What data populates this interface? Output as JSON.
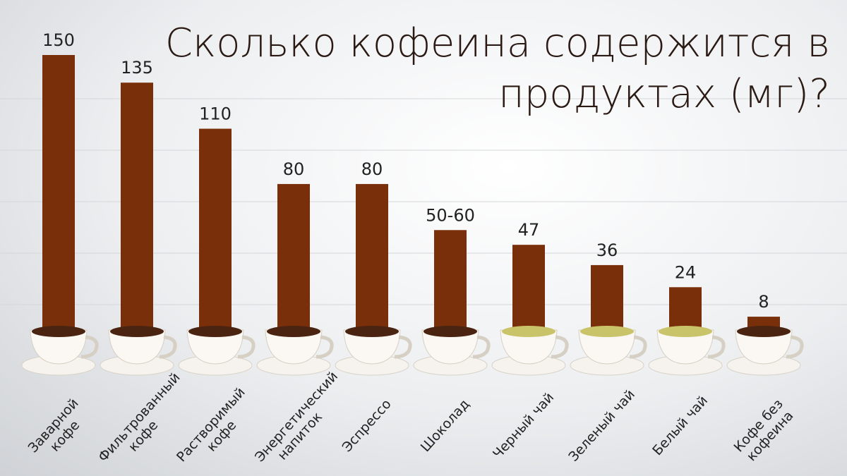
{
  "chart_data": {
    "type": "bar",
    "title": "Сколько кофеина содержится в продуктах (мг)?",
    "categories": [
      "Заварной кофе",
      "Фильтрованный кофе",
      "Растворимый кофе",
      "Энергетический напиток",
      "Эспрессо",
      "Шоколад",
      "Черный чай",
      "Зеленый чай",
      "Белый чай",
      "Кофе без кофеина"
    ],
    "values": [
      150,
      135,
      110,
      80,
      80,
      55,
      47,
      36,
      24,
      8
    ],
    "value_labels": [
      "150",
      "135",
      "110",
      "80",
      "80",
      "50-60",
      "47",
      "36",
      "24",
      "8"
    ],
    "color": "#7a2f0b",
    "ylim": [
      0,
      150
    ],
    "grid": true
  }
}
